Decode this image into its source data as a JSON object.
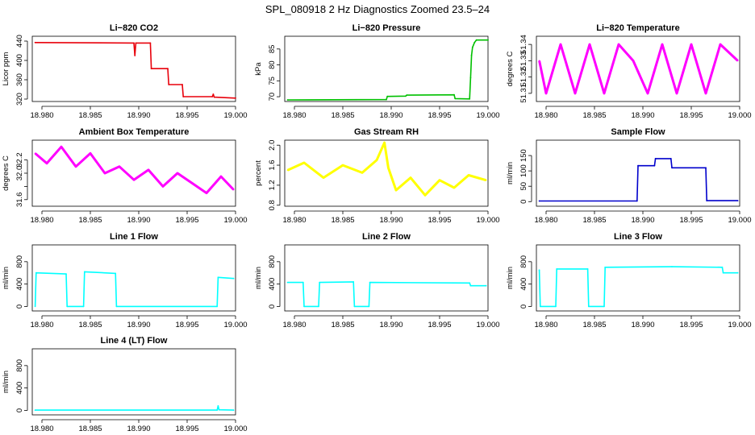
{
  "figure_title": "SPL_080918  2 Hz Diagnostics Zoomed 23.5–24",
  "chart_data": [
    {
      "id": "co2",
      "type": "line",
      "title": "Li−820 CO2",
      "ylabel": "Licor ppm",
      "color": "#e8000b",
      "xlim": [
        18.979,
        19.0
      ],
      "ylim": [
        315,
        450
      ],
      "xticks": [
        18.98,
        18.985,
        18.99,
        18.995,
        19.0
      ],
      "xtick_labels": [
        "18.980",
        "18.985",
        "18.990",
        "18.995",
        "19.000"
      ],
      "yticks": [
        320,
        360,
        400,
        440
      ],
      "ytick_labels": [
        "320",
        "360",
        "400",
        "440"
      ],
      "x": [
        18.9793,
        18.9895,
        18.9896,
        18.9897,
        18.9912,
        18.9913,
        18.993,
        18.9931,
        18.9945,
        18.9946,
        18.9976,
        18.9977,
        18.9978,
        19.0
      ],
      "y": [
        437,
        436,
        410,
        436,
        436,
        383,
        383,
        350,
        350,
        325,
        325,
        330,
        324,
        322
      ]
    },
    {
      "id": "pressure",
      "type": "line",
      "title": "Li−820 Pressure",
      "ylabel": "kPa",
      "color": "#00c000",
      "xlim": [
        18.979,
        19.0
      ],
      "ylim": [
        68.5,
        89
      ],
      "xticks": [
        18.98,
        18.985,
        18.99,
        18.995,
        19.0
      ],
      "xtick_labels": [
        "18.980",
        "18.985",
        "18.990",
        "18.995",
        "19.000"
      ],
      "yticks": [
        70,
        75,
        80,
        85
      ],
      "ytick_labels": [
        "70",
        "75",
        "80",
        "85"
      ],
      "x": [
        18.9793,
        18.9895,
        18.9896,
        18.9915,
        18.9916,
        18.9965,
        18.9966,
        18.9981,
        18.9982,
        18.9983,
        18.9984,
        18.9986,
        18.9988,
        19.0
      ],
      "y": [
        69.0,
        69.1,
        70.1,
        70.2,
        70.5,
        70.6,
        69.4,
        69.3,
        76,
        83,
        85.5,
        87.0,
        87.8,
        87.8
      ]
    },
    {
      "id": "temperature",
      "type": "line",
      "title": "Li−820 Temperature",
      "ylabel": "degrees C",
      "color": "#ff00ff",
      "xlim": [
        18.979,
        19.0
      ],
      "ylim": [
        51.305,
        51.345
      ],
      "xticks": [
        18.98,
        18.985,
        18.99,
        18.995,
        19.0
      ],
      "xtick_labels": [
        "18.980",
        "18.985",
        "18.990",
        "18.995",
        "19.000"
      ],
      "yticks": [
        51.31,
        51.32,
        51.33,
        51.34
      ],
      "ytick_labels": [
        "51.31",
        "51.32",
        "51.33",
        "51.34"
      ],
      "x": [
        18.9793,
        18.98,
        18.9815,
        18.983,
        18.9845,
        18.986,
        18.9875,
        18.989,
        18.9905,
        18.992,
        18.9935,
        18.995,
        18.9965,
        18.998,
        18.9998
      ],
      "y": [
        51.33,
        51.31,
        51.34,
        51.31,
        51.34,
        51.31,
        51.34,
        51.33,
        51.31,
        51.34,
        51.31,
        51.34,
        51.31,
        51.34,
        51.33
      ]
    },
    {
      "id": "ambient",
      "type": "line",
      "title": "Ambient Box Temperature",
      "ylabel": "degrees C",
      "color": "#ff00ff",
      "xlim": [
        18.979,
        19.0
      ],
      "ylim": [
        31.5,
        32.5
      ],
      "xticks": [
        18.98,
        18.985,
        18.99,
        18.995,
        19.0
      ],
      "xtick_labels": [
        "18.980",
        "18.985",
        "18.990",
        "18.995",
        "19.000"
      ],
      "yticks": [
        31.6,
        31.8,
        32.0,
        32.2
      ],
      "ytick_labels": [
        "31.6",
        "",
        "32.0",
        "32.2"
      ],
      "x": [
        18.9793,
        18.9805,
        18.982,
        18.9835,
        18.985,
        18.9865,
        18.988,
        18.9895,
        18.991,
        18.9925,
        18.994,
        18.9955,
        18.997,
        18.9985,
        18.9998
      ],
      "y": [
        32.3,
        32.15,
        32.4,
        32.1,
        32.3,
        32.0,
        32.1,
        31.9,
        32.05,
        31.8,
        32.0,
        31.85,
        31.7,
        31.95,
        31.75
      ]
    },
    {
      "id": "rh",
      "type": "line",
      "title": "Gas Stream RH",
      "ylabel": "percent",
      "color": "#ffff00",
      "xlim": [
        18.979,
        19.0
      ],
      "ylim": [
        0.78,
        2.1
      ],
      "xticks": [
        18.98,
        18.985,
        18.99,
        18.995,
        19.0
      ],
      "xtick_labels": [
        "18.980",
        "18.985",
        "18.990",
        "18.995",
        "19.000"
      ],
      "yticks": [
        0.8,
        1.2,
        1.6,
        2.0
      ],
      "ytick_labels": [
        "0.8",
        "1.2",
        "1.6",
        "2.0"
      ],
      "x": [
        18.9793,
        18.981,
        18.983,
        18.985,
        18.987,
        18.9885,
        18.9893,
        18.9897,
        18.9905,
        18.992,
        18.9935,
        18.995,
        18.9965,
        18.998,
        18.9998
      ],
      "y": [
        1.5,
        1.65,
        1.35,
        1.6,
        1.45,
        1.7,
        2.05,
        1.55,
        1.1,
        1.35,
        1.0,
        1.3,
        1.15,
        1.4,
        1.3
      ]
    },
    {
      "id": "sample_flow",
      "type": "line",
      "title": "Sample Flow",
      "ylabel": "ml/min",
      "color": "#0000cc",
      "xlim": [
        18.979,
        19.0
      ],
      "ylim": [
        -15,
        200
      ],
      "xticks": [
        18.98,
        18.985,
        18.99,
        18.995,
        19.0
      ],
      "xtick_labels": [
        "18.980",
        "18.985",
        "18.990",
        "18.995",
        "19.000"
      ],
      "yticks": [
        0,
        50,
        100,
        150
      ],
      "ytick_labels": [
        "0",
        "50",
        "100",
        "150"
      ],
      "x": [
        18.9793,
        18.9894,
        18.9895,
        18.9912,
        18.9913,
        18.9929,
        18.993,
        18.9965,
        18.9966,
        18.9998
      ],
      "y": [
        2,
        2,
        117,
        117,
        140,
        140,
        110,
        110,
        3,
        3
      ]
    },
    {
      "id": "line1",
      "type": "line",
      "title": "Line 1 Flow",
      "ylabel": "ml/min",
      "color": "#00ffff",
      "xlim": [
        18.979,
        19.0
      ],
      "ylim": [
        -80,
        1100
      ],
      "xticks": [
        18.98,
        18.985,
        18.99,
        18.995,
        19.0
      ],
      "xtick_labels": [
        "18.980",
        "18.985",
        "18.990",
        "18.995",
        "19.000"
      ],
      "yticks": [
        0,
        400,
        800
      ],
      "ytick_labels": [
        "0",
        "400",
        "800"
      ],
      "x": [
        18.9793,
        18.9794,
        18.9825,
        18.9826,
        18.9843,
        18.9844,
        18.9876,
        18.9877,
        18.9981,
        18.9982,
        18.9998
      ],
      "y": [
        0,
        600,
        580,
        0,
        0,
        620,
        590,
        0,
        0,
        520,
        500
      ]
    },
    {
      "id": "line2",
      "type": "line",
      "title": "Line 2 Flow",
      "ylabel": "ml/min",
      "color": "#00ffff",
      "xlim": [
        18.979,
        19.0
      ],
      "ylim": [
        -80,
        1100
      ],
      "xticks": [
        18.98,
        18.985,
        18.99,
        18.995,
        19.0
      ],
      "xtick_labels": [
        "18.980",
        "18.985",
        "18.990",
        "18.995",
        "19.000"
      ],
      "yticks": [
        0,
        400,
        800
      ],
      "ytick_labels": [
        "0",
        "400",
        "800"
      ],
      "x": [
        18.9793,
        18.9809,
        18.981,
        18.9825,
        18.9826,
        18.9861,
        18.9862,
        18.9877,
        18.9878,
        18.9981,
        18.9982,
        18.9998
      ],
      "y": [
        430,
        430,
        0,
        0,
        430,
        440,
        0,
        0,
        430,
        420,
        370,
        370
      ]
    },
    {
      "id": "line3",
      "type": "line",
      "title": "Line 3 Flow",
      "ylabel": "ml/min",
      "color": "#00ffff",
      "xlim": [
        18.979,
        19.0
      ],
      "ylim": [
        -80,
        1100
      ],
      "xticks": [
        18.98,
        18.985,
        18.99,
        18.995,
        19.0
      ],
      "xtick_labels": [
        "18.980",
        "18.985",
        "18.990",
        "18.995",
        "19.000"
      ],
      "yticks": [
        0,
        400,
        800
      ],
      "ytick_labels": [
        "0",
        "400",
        "800"
      ],
      "x": [
        18.9793,
        18.9794,
        18.981,
        18.9811,
        18.9843,
        18.9844,
        18.986,
        18.9861,
        18.993,
        18.9982,
        18.9983,
        18.9998
      ],
      "y": [
        650,
        0,
        0,
        670,
        670,
        0,
        0,
        700,
        710,
        700,
        600,
        600
      ]
    },
    {
      "id": "line4",
      "type": "line",
      "title": "Line 4 (LT) Flow",
      "ylabel": "ml/min",
      "color": "#00ffff",
      "xlim": [
        18.979,
        19.0
      ],
      "ylim": [
        -80,
        1100
      ],
      "xticks": [
        18.98,
        18.985,
        18.99,
        18.995,
        19.0
      ],
      "xtick_labels": [
        "18.980",
        "18.985",
        "18.990",
        "18.995",
        "19.000"
      ],
      "yticks": [
        0,
        400,
        800
      ],
      "ytick_labels": [
        "0",
        "400",
        "800"
      ],
      "x": [
        18.9793,
        18.9981,
        18.9982,
        18.9983,
        18.9998
      ],
      "y": [
        5,
        5,
        80,
        10,
        5
      ]
    }
  ]
}
